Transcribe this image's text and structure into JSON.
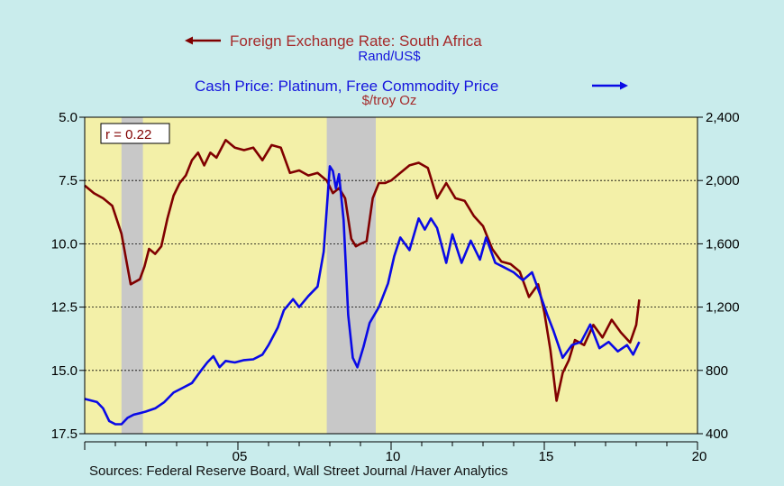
{
  "header": {
    "series1_title": "Foreign Exchange Rate: South Africa",
    "series1_unit": "Rand/US$",
    "series2_title": "Cash Price: Platinum, Free Commodity Price",
    "series2_unit": "$/troy Oz",
    "correlation": "r = 0.22"
  },
  "footer": {
    "sources": "Sources:  Federal Reserve Board, Wall Street Journal /Haver Analytics"
  },
  "colors": {
    "background": "#c9ecec",
    "plot_area": "#f3f0a8",
    "recession_band": "#c8c8c8",
    "rand_line": "#800000",
    "platinum_line": "#0a0ae6",
    "header_series1": "#a52a2a",
    "header_series2": "#1515dd"
  },
  "chart_data": {
    "type": "line",
    "x_axis": {
      "range": [
        2000,
        2020
      ],
      "tick_labels": [
        "05",
        "10",
        "15",
        "20"
      ],
      "tick_values": [
        2005,
        2010,
        2015,
        2020
      ]
    },
    "left_axis": {
      "label": "Rand/US$",
      "inverted": true,
      "range": [
        5.0,
        17.5
      ],
      "tick_labels": [
        "5.0",
        "7.5",
        "10.0",
        "12.5",
        "15.0",
        "17.5"
      ],
      "tick_values": [
        5.0,
        7.5,
        10.0,
        12.5,
        15.0,
        17.5
      ]
    },
    "right_axis": {
      "label": "$/troy Oz",
      "range": [
        400,
        2400
      ],
      "tick_labels": [
        "400",
        "800",
        "1,200",
        "1,600",
        "2,000",
        "2,400"
      ],
      "tick_values": [
        400,
        800,
        1200,
        1600,
        2000,
        2400
      ]
    },
    "grid": "horizontal dashed",
    "recessions": [
      [
        2001.2,
        2001.9
      ],
      [
        2007.9,
        2009.5
      ]
    ],
    "series": [
      {
        "name": "Foreign Exchange Rate: South Africa",
        "axis": "left",
        "x": [
          2000.0,
          2000.3,
          2000.6,
          2000.9,
          2001.2,
          2001.5,
          2001.8,
          2001.95,
          2002.1,
          2002.3,
          2002.5,
          2002.7,
          2002.9,
          2003.1,
          2003.3,
          2003.5,
          2003.7,
          2003.9,
          2004.1,
          2004.3,
          2004.6,
          2004.9,
          2005.2,
          2005.5,
          2005.8,
          2006.1,
          2006.4,
          2006.7,
          2007.0,
          2007.3,
          2007.6,
          2007.9,
          2008.1,
          2008.3,
          2008.5,
          2008.7,
          2008.85,
          2009.0,
          2009.2,
          2009.4,
          2009.6,
          2009.8,
          2010.0,
          2010.3,
          2010.6,
          2010.9,
          2011.2,
          2011.5,
          2011.8,
          2012.1,
          2012.4,
          2012.7,
          2013.0,
          2013.3,
          2013.6,
          2013.9,
          2014.2,
          2014.5,
          2014.8,
          2015.0,
          2015.2,
          2015.4,
          2015.6,
          2015.8,
          2016.0,
          2016.3,
          2016.6,
          2016.9,
          2017.2,
          2017.5,
          2017.8,
          2018.0,
          2018.1
        ],
        "values": [
          7.7,
          8.0,
          8.2,
          8.5,
          9.6,
          11.6,
          11.4,
          10.9,
          10.2,
          10.4,
          10.1,
          9.0,
          8.1,
          7.6,
          7.3,
          6.7,
          6.4,
          6.9,
          6.4,
          6.6,
          5.9,
          6.2,
          6.3,
          6.2,
          6.7,
          6.1,
          6.2,
          7.2,
          7.1,
          7.3,
          7.2,
          7.5,
          8.0,
          7.8,
          8.2,
          9.8,
          10.1,
          10.0,
          9.9,
          8.2,
          7.6,
          7.6,
          7.5,
          7.2,
          6.9,
          6.8,
          7.0,
          8.2,
          7.6,
          8.2,
          8.3,
          8.9,
          9.3,
          10.2,
          10.7,
          10.8,
          11.1,
          12.1,
          11.6,
          12.7,
          14.2,
          16.2,
          15.1,
          14.6,
          13.8,
          14.0,
          13.2,
          13.7,
          13.0,
          13.5,
          13.9,
          13.2,
          12.2
        ]
      },
      {
        "name": "Cash Price: Platinum, Free Commodity Price",
        "axis": "right",
        "x": [
          2000.0,
          2000.2,
          2000.4,
          2000.6,
          2000.8,
          2001.0,
          2001.2,
          2001.4,
          2001.6,
          2001.8,
          2002.0,
          2002.3,
          2002.6,
          2002.9,
          2003.2,
          2003.5,
          2003.8,
          2004.0,
          2004.2,
          2004.4,
          2004.6,
          2004.9,
          2005.2,
          2005.5,
          2005.8,
          2006.0,
          2006.3,
          2006.5,
          2006.8,
          2007.0,
          2007.3,
          2007.6,
          2007.8,
          2008.0,
          2008.1,
          2008.2,
          2008.3,
          2008.45,
          2008.6,
          2008.75,
          2008.9,
          2009.1,
          2009.3,
          2009.6,
          2009.9,
          2010.1,
          2010.3,
          2010.6,
          2010.9,
          2011.1,
          2011.3,
          2011.5,
          2011.8,
          2012.0,
          2012.3,
          2012.6,
          2012.9,
          2013.1,
          2013.4,
          2013.7,
          2014.0,
          2014.3,
          2014.6,
          2014.9,
          2015.1,
          2015.3,
          2015.6,
          2015.9,
          2016.2,
          2016.5,
          2016.8,
          2017.1,
          2017.4,
          2017.7,
          2017.9,
          2018.1
        ],
        "values": [
          620,
          610,
          600,
          560,
          480,
          460,
          460,
          500,
          520,
          530,
          540,
          560,
          600,
          660,
          690,
          720,
          800,
          850,
          890,
          820,
          860,
          850,
          865,
          870,
          900,
          960,
          1070,
          1180,
          1250,
          1200,
          1270,
          1330,
          1550,
          2090,
          2060,
          1950,
          2040,
          1750,
          1150,
          880,
          820,
          950,
          1100,
          1200,
          1350,
          1520,
          1640,
          1560,
          1760,
          1690,
          1760,
          1700,
          1480,
          1660,
          1480,
          1620,
          1500,
          1640,
          1480,
          1450,
          1420,
          1370,
          1420,
          1260,
          1150,
          1050,
          880,
          960,
          980,
          1090,
          940,
          980,
          920,
          960,
          900,
          980
        ]
      }
    ]
  }
}
